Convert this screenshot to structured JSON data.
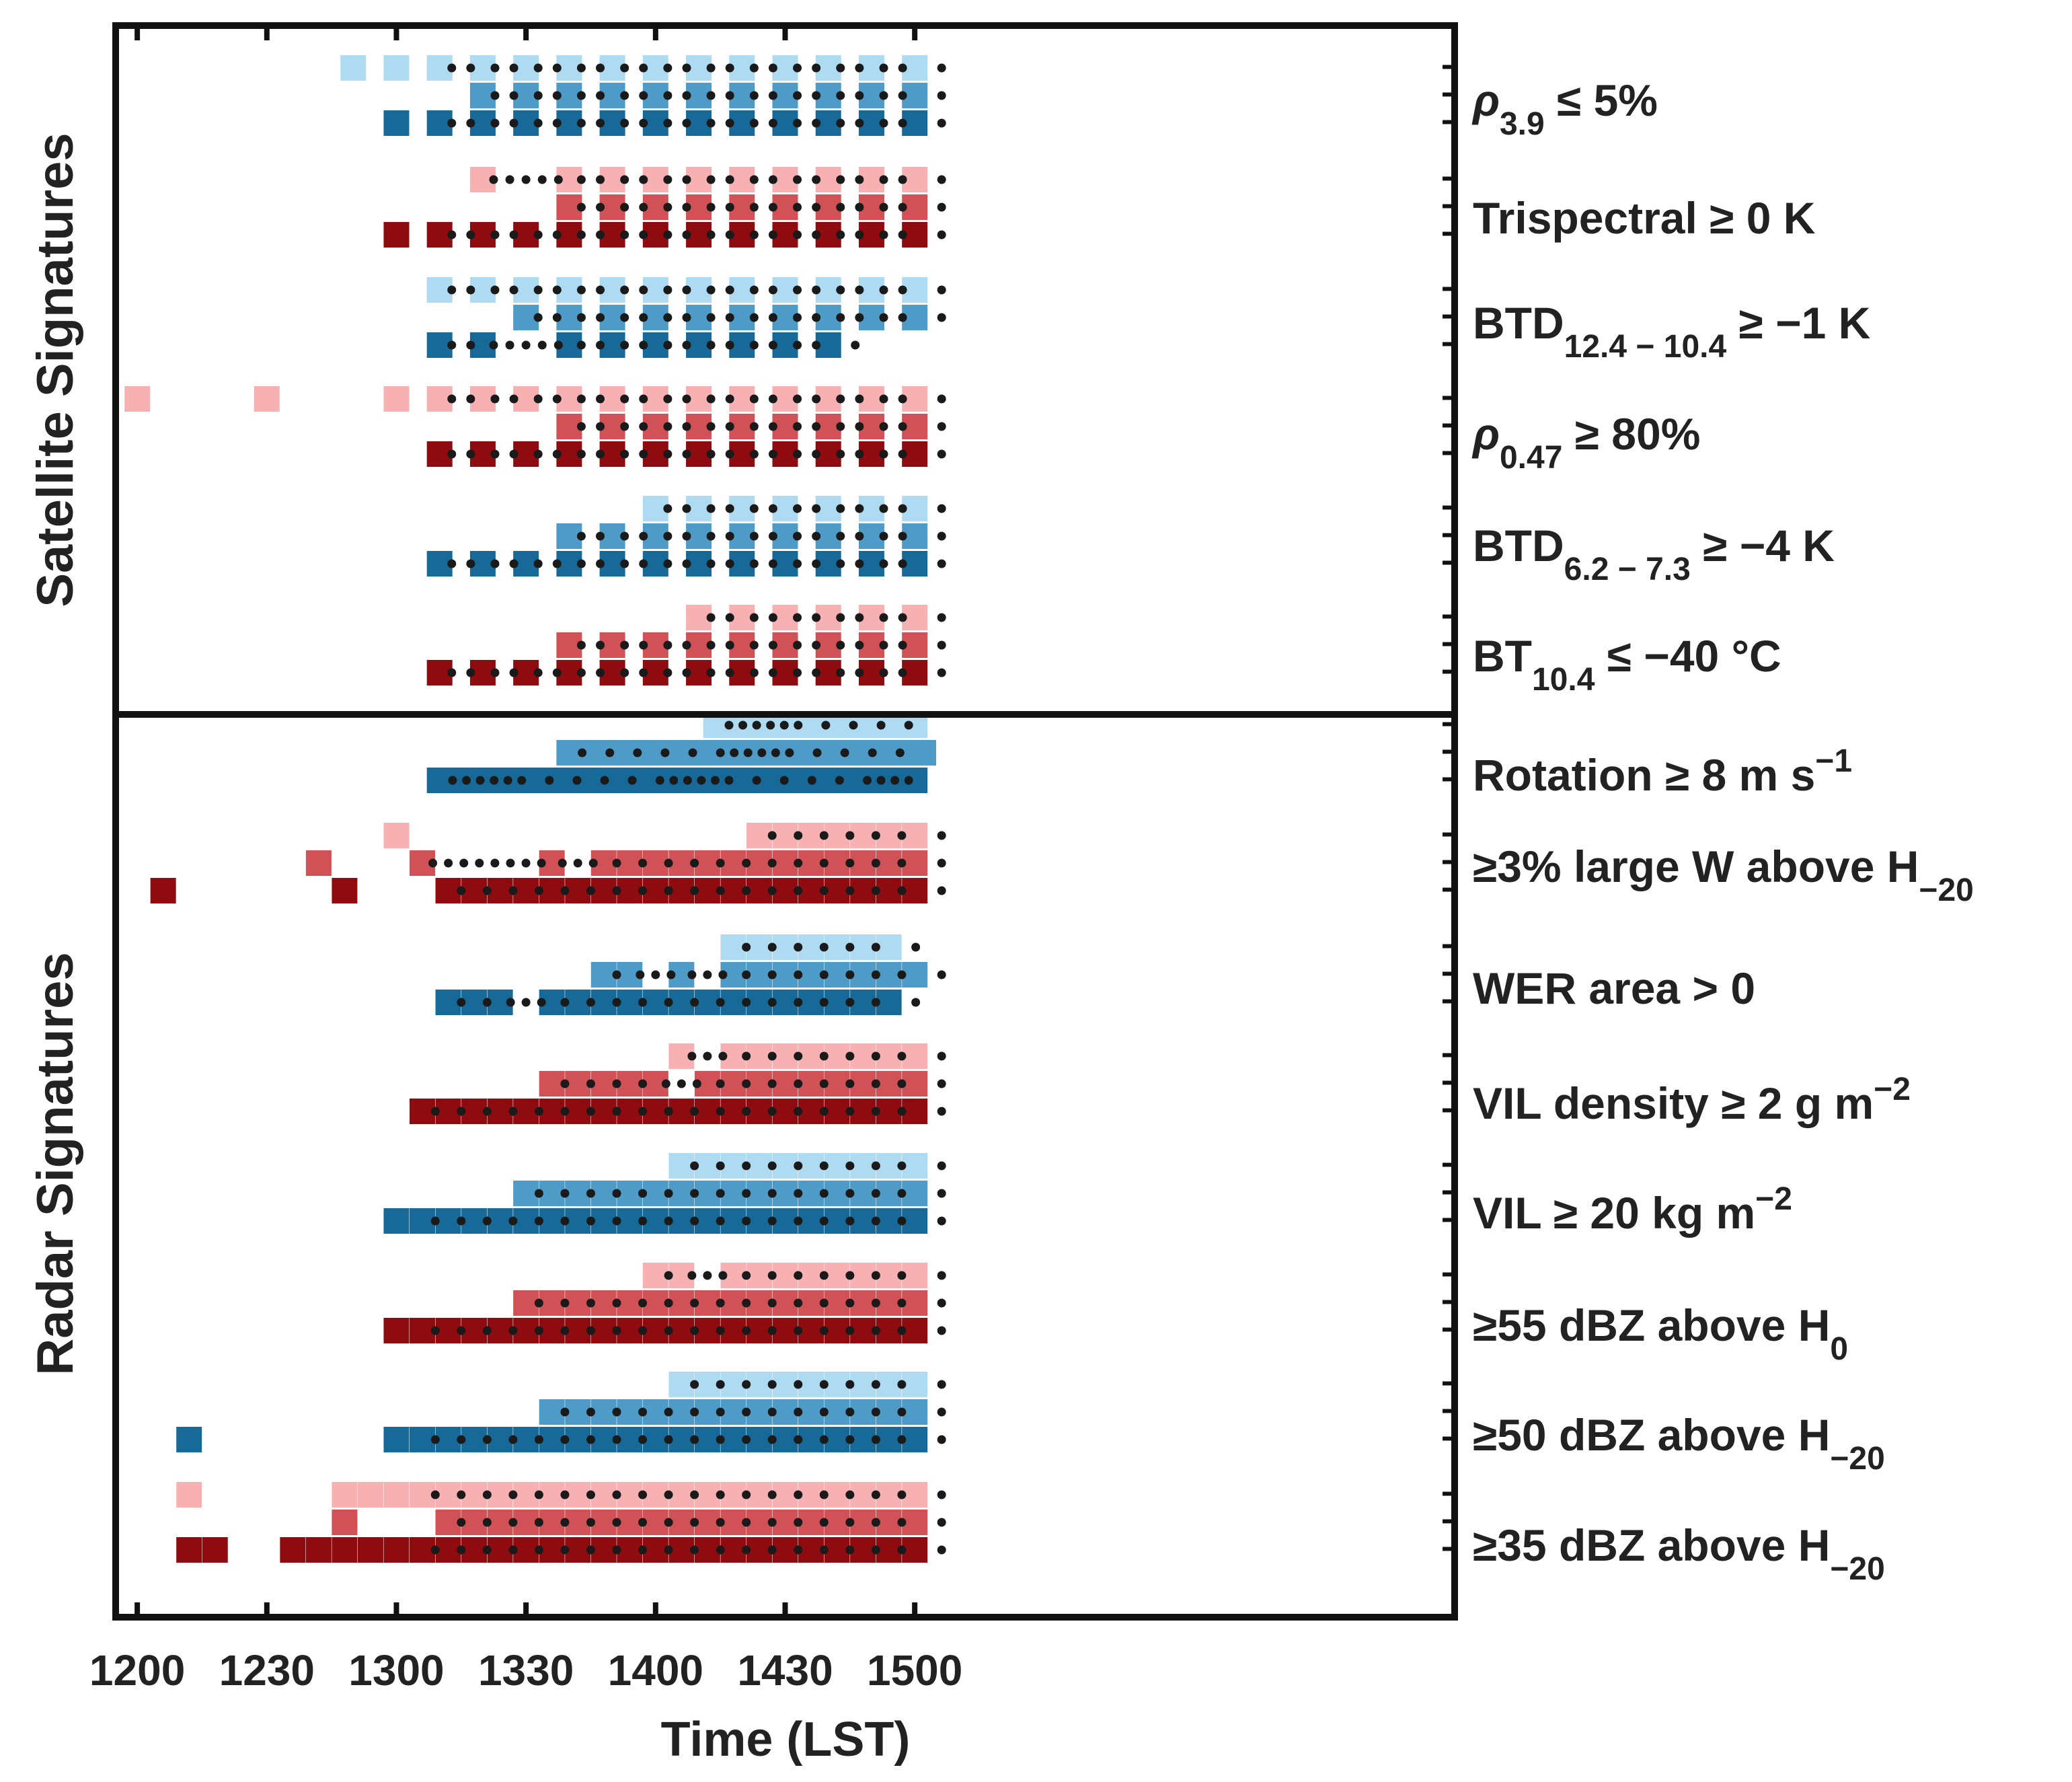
{
  "chart_data": {
    "type": "heatmap",
    "title": "",
    "xlabel": "Time (LST)",
    "xlim_minutes_after_1200": [
      -5,
      305
    ],
    "x_ticks": [
      "1200",
      "1230",
      "1300",
      "1330",
      "1400",
      "1430",
      "1500"
    ],
    "x_tick_minutes_after_1200": [
      0,
      30,
      60,
      90,
      120,
      150,
      180
    ],
    "panels": [
      {
        "name": "Satellite Signatures",
        "color_family": "blue-and-red",
        "rows": [
          0,
          1,
          2,
          3,
          4,
          5
        ]
      },
      {
        "name": "Radar Signatures",
        "color_family": "blue-and-red",
        "rows": [
          6,
          7,
          8,
          9,
          10,
          11,
          12,
          13
        ]
      }
    ],
    "levels_note": "three stacked levels per signature: bottom (dark), middle (medium), top (light)",
    "colors": {
      "blue": [
        "#176a98",
        "#4f9bc8",
        "#aedbf2"
      ],
      "red": [
        "#8e0c10",
        "#d05257",
        "#f8b1b2"
      ],
      "dot": "#1a1a1a",
      "frame": "#111111"
    },
    "rows": [
      {
        "label": "ρ3.9 ≤ 5%",
        "label_parts": {
          "main": "ρ",
          "sub": "3.9",
          "rest": " ≤ 5%"
        },
        "family": "blue",
        "bottom": [
          60,
          70,
          80,
          90,
          100,
          110,
          120,
          130,
          140,
          150,
          160,
          170,
          180
        ],
        "middle": [
          80,
          90,
          100,
          110,
          120,
          130,
          140,
          150,
          160,
          170,
          180
        ],
        "top": [
          50,
          60,
          70,
          80,
          90,
          100,
          110,
          120,
          130,
          140,
          150,
          160,
          170,
          180
        ]
      },
      {
        "label": "Trispectral ≥ 0 K",
        "label_parts": {
          "main": "Trispectral ≥ 0 K"
        },
        "family": "red",
        "bottom": [
          60,
          70,
          80,
          90,
          100,
          110,
          120,
          130,
          140,
          150,
          160,
          170,
          180
        ],
        "middle": [
          100,
          110,
          120,
          130,
          140,
          150,
          160,
          170,
          180
        ],
        "top": [
          80,
          100,
          110,
          120,
          130,
          140,
          150,
          160,
          170,
          180
        ]
      },
      {
        "label": "BTD12.4 − 10.4 ≥ −1 K",
        "label_parts": {
          "main": "BTD",
          "sub": "12.4 − 10.4",
          "rest": " ≥ −1 K"
        },
        "family": "blue",
        "bottom": [
          70,
          80,
          100,
          110,
          120,
          130,
          140,
          150,
          160
        ],
        "middle": [
          90,
          100,
          110,
          120,
          130,
          140,
          150,
          160,
          170,
          180
        ],
        "top": [
          70,
          80,
          90,
          100,
          110,
          120,
          130,
          140,
          150,
          160,
          170,
          180
        ]
      },
      {
        "label": "ρ0.47 ≥ 80%",
        "label_parts": {
          "main": "ρ",
          "sub": "0.47",
          "rest": " ≥ 80%"
        },
        "family": "red",
        "bottom": [
          70,
          80,
          90,
          100,
          110,
          120,
          130,
          140,
          150,
          160,
          170,
          180
        ],
        "middle": [
          100,
          110,
          120,
          130,
          140,
          150,
          160,
          170,
          180
        ],
        "top": [
          0,
          30,
          60,
          70,
          80,
          90,
          100,
          110,
          120,
          130,
          140,
          150,
          160,
          170,
          180
        ]
      },
      {
        "label": "BTD6.2 − 7.3 ≥ −4 K",
        "label_parts": {
          "main": "BTD",
          "sub": "6.2 − 7.3",
          "rest": " ≥ −4 K"
        },
        "family": "blue",
        "bottom": [
          70,
          80,
          90,
          100,
          110,
          120,
          130,
          140,
          150,
          160,
          170,
          180
        ],
        "middle": [
          100,
          110,
          120,
          130,
          140,
          150,
          160,
          170,
          180
        ],
        "top": [
          120,
          130,
          140,
          150,
          160,
          170,
          180
        ]
      },
      {
        "label": "BT10.4 ≤ −40 °C",
        "label_parts": {
          "main": "BT",
          "sub": "10.4",
          "rest": " ≤ −40 °C"
        },
        "family": "red",
        "bottom": [
          70,
          80,
          90,
          100,
          110,
          120,
          130,
          140,
          150,
          160,
          170,
          180
        ],
        "middle": [
          100,
          110,
          120,
          130,
          140,
          150,
          160,
          170,
          180
        ],
        "top": [
          130,
          140,
          150,
          160,
          170,
          180
        ]
      },
      {
        "label": "Rotation ≥ 8 m s−1",
        "label_parts": {
          "main": "Rotation ≥ 8 m s",
          "sup": "−1"
        },
        "family": "blue",
        "continuous": true,
        "bottom_span": [
          70,
          180
        ],
        "middle_span": [
          100,
          182
        ],
        "top_span": [
          134,
          180
        ]
      },
      {
        "label": "≥3% large W above H−20",
        "label_parts": {
          "main": "≥3% large W above H",
          "sub": "−20"
        },
        "family": "red",
        "bottom": [
          6,
          48,
          72,
          78,
          84,
          90,
          96,
          102,
          108,
          114,
          120,
          126,
          132,
          138,
          144,
          150,
          156,
          162,
          168,
          174,
          180
        ],
        "middle": [
          42,
          66,
          96,
          108,
          114,
          120,
          126,
          132,
          138,
          144,
          150,
          156,
          162,
          168,
          174,
          180
        ],
        "top": [
          60,
          144,
          150,
          156,
          162,
          168,
          174,
          180
        ]
      },
      {
        "label": "WER area > 0",
        "label_parts": {
          "main": "WER area > 0"
        },
        "family": "blue",
        "bottom": [
          72,
          78,
          84,
          96,
          102,
          108,
          114,
          120,
          126,
          132,
          138,
          144,
          150,
          156,
          162,
          168,
          174
        ],
        "middle": [
          108,
          114,
          126,
          138,
          144,
          150,
          156,
          162,
          168,
          174,
          180
        ],
        "top": [
          138,
          144,
          150,
          156,
          162,
          168,
          174
        ]
      },
      {
        "label": "VIL density ≥ 2 g m−2",
        "label_parts": {
          "main": "VIL density ≥ 2 g m",
          "sup": "−2"
        },
        "family": "red",
        "bottom": [
          66,
          72,
          78,
          84,
          90,
          96,
          102,
          108,
          114,
          120,
          126,
          132,
          138,
          144,
          150,
          156,
          162,
          168,
          174,
          180
        ],
        "middle": [
          96,
          102,
          108,
          114,
          120,
          132,
          138,
          144,
          150,
          156,
          162,
          168,
          174,
          180
        ],
        "top": [
          126,
          138,
          144,
          150,
          156,
          162,
          168,
          174,
          180
        ]
      },
      {
        "label": "VIL ≥ 20 kg m−2",
        "label_parts": {
          "main": "VIL ≥ 20 kg m",
          "sup": "−2"
        },
        "family": "blue",
        "bottom": [
          60,
          66,
          72,
          78,
          84,
          90,
          96,
          102,
          108,
          114,
          120,
          126,
          132,
          138,
          144,
          150,
          156,
          162,
          168,
          174,
          180
        ],
        "middle": [
          90,
          96,
          102,
          108,
          114,
          120,
          126,
          132,
          138,
          144,
          150,
          156,
          162,
          168,
          174,
          180
        ],
        "top": [
          126,
          132,
          138,
          144,
          150,
          156,
          162,
          168,
          174,
          180
        ]
      },
      {
        "label": "≥55 dBZ above H0",
        "label_parts": {
          "main": "≥55 dBZ above H",
          "sub": "0"
        },
        "family": "red",
        "bottom": [
          60,
          66,
          72,
          78,
          84,
          90,
          96,
          102,
          108,
          114,
          120,
          126,
          132,
          138,
          144,
          150,
          156,
          162,
          168,
          174,
          180
        ],
        "middle": [
          90,
          96,
          102,
          108,
          114,
          120,
          126,
          132,
          138,
          144,
          150,
          156,
          162,
          168,
          174,
          180
        ],
        "top": [
          120,
          126,
          138,
          144,
          150,
          156,
          162,
          168,
          174,
          180
        ]
      },
      {
        "label": "≥50 dBZ above H−20",
        "label_parts": {
          "main": "≥50 dBZ above H",
          "sub": "−20"
        },
        "family": "blue",
        "bottom": [
          12,
          60,
          66,
          72,
          78,
          84,
          90,
          96,
          102,
          108,
          114,
          120,
          126,
          132,
          138,
          144,
          150,
          156,
          162,
          168,
          174,
          180
        ],
        "middle": [
          96,
          102,
          108,
          114,
          120,
          126,
          132,
          138,
          144,
          150,
          156,
          162,
          168,
          174,
          180
        ],
        "top": [
          126,
          132,
          138,
          144,
          150,
          156,
          162,
          168,
          174,
          180
        ]
      },
      {
        "label": "≥35 dBZ above H−20",
        "label_parts": {
          "main": "≥35 dBZ above H",
          "sub": "−20"
        },
        "family": "red",
        "bottom": [
          12,
          18,
          36,
          42,
          48,
          54,
          60,
          66,
          72,
          78,
          84,
          90,
          96,
          102,
          108,
          114,
          120,
          126,
          132,
          138,
          144,
          150,
          156,
          162,
          168,
          174,
          180
        ],
        "middle": [
          48,
          72,
          78,
          84,
          90,
          96,
          102,
          108,
          114,
          120,
          126,
          132,
          138,
          144,
          150,
          156,
          162,
          168,
          174,
          180
        ],
        "top": [
          12,
          48,
          54,
          60,
          66,
          72,
          78,
          84,
          90,
          96,
          102,
          108,
          114,
          120,
          126,
          132,
          138,
          144,
          150,
          156,
          162,
          168,
          174,
          180
        ]
      }
    ]
  }
}
